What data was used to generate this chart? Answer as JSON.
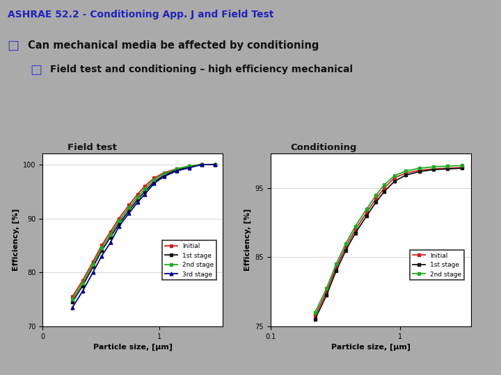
{
  "title_main": "ASHRAE 52.2 - Conditioning App. J and Field Test",
  "title_main_color": "#2222bb",
  "subtitle1_box": "□",
  "subtitle1_text": "Can mechanical media be affected by conditioning",
  "subtitle2_box": "□",
  "subtitle2_text": "Field test and conditioning – high efficiency mechanical",
  "bg_color": "#aaaaaa",
  "plot_bg": "#ffffff",
  "left_plot_title": "Field test",
  "right_plot_title": "Conditioning",
  "xlabel": "Particle size, [μm]",
  "ylabel": "Efficiency, [%]",
  "left_ylim": [
    70,
    102
  ],
  "right_ylim": [
    75,
    100
  ],
  "left_yticks": [
    70,
    80,
    90,
    100
  ],
  "right_yticks": [
    75,
    85,
    95
  ],
  "particle_sizes": [
    0.18,
    0.22,
    0.27,
    0.32,
    0.38,
    0.45,
    0.55,
    0.65,
    0.75,
    0.9,
    1.1,
    1.4,
    1.8,
    2.3,
    3.0
  ],
  "field_initial": [
    75.5,
    78.5,
    82.0,
    85.0,
    87.5,
    90.0,
    92.5,
    94.5,
    96.0,
    97.5,
    98.5,
    99.2,
    99.7,
    100.0,
    100.0
  ],
  "field_stage1": [
    74.5,
    77.5,
    81.0,
    84.0,
    86.5,
    89.0,
    91.5,
    93.5,
    95.0,
    96.8,
    98.0,
    99.0,
    99.5,
    100.0,
    100.0
  ],
  "field_stage2": [
    75.0,
    78.0,
    81.5,
    84.5,
    87.0,
    89.5,
    92.0,
    94.0,
    95.5,
    97.2,
    98.3,
    99.2,
    99.7,
    100.0,
    100.0
  ],
  "field_stage3": [
    73.5,
    76.5,
    80.0,
    83.0,
    85.5,
    88.5,
    91.0,
    93.0,
    94.5,
    96.5,
    97.8,
    98.8,
    99.4,
    100.0,
    100.0
  ],
  "cond_particle_sizes": [
    0.22,
    0.27,
    0.32,
    0.38,
    0.45,
    0.55,
    0.65,
    0.75,
    0.9,
    1.1,
    1.4,
    1.8,
    2.3,
    3.0
  ],
  "cond_initial": [
    76.5,
    80.0,
    83.5,
    86.5,
    89.0,
    91.5,
    93.5,
    95.0,
    96.5,
    97.2,
    97.6,
    97.8,
    97.9,
    98.0
  ],
  "cond_stage1": [
    76.0,
    79.5,
    83.0,
    86.0,
    88.5,
    91.0,
    93.0,
    94.5,
    96.0,
    96.9,
    97.4,
    97.7,
    97.8,
    97.9
  ],
  "cond_stage2": [
    77.0,
    80.5,
    84.0,
    87.0,
    89.5,
    92.0,
    94.0,
    95.5,
    96.8,
    97.5,
    97.9,
    98.1,
    98.2,
    98.3
  ],
  "field_colors": [
    "#cc2222",
    "#111111",
    "#22aa22",
    "#000088"
  ],
  "cond_colors": [
    "#cc2222",
    "#111111",
    "#22aa22"
  ],
  "field_markers": [
    "s",
    "s",
    "s",
    "^"
  ],
  "cond_markers": [
    "s",
    "s",
    "s"
  ],
  "field_labels": [
    "Initial",
    "1st stage",
    "2nd stage",
    "3rd stage"
  ],
  "cond_labels": [
    "Initial",
    "1st stage",
    "2nd stage"
  ]
}
